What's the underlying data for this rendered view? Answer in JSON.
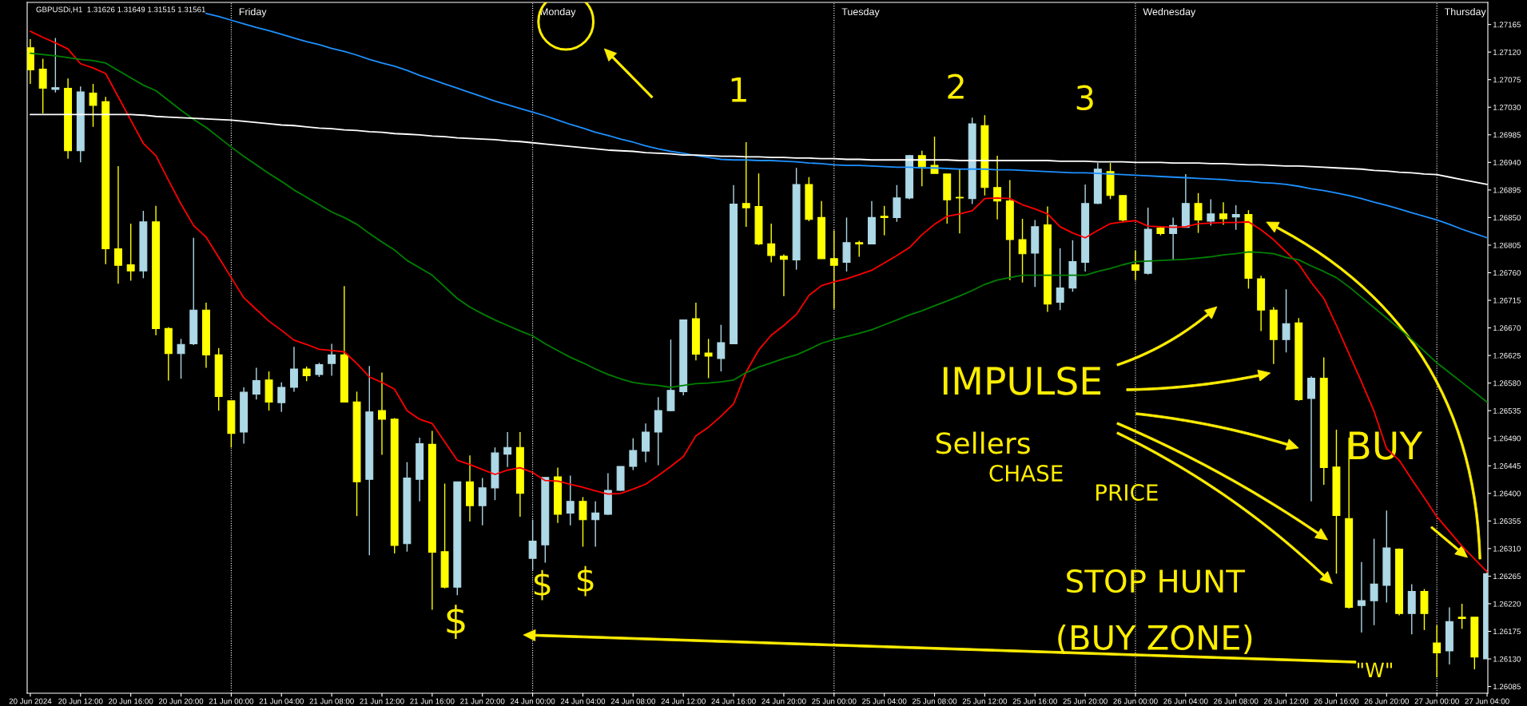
{
  "chart_data": {
    "type": "candlestick",
    "title": "GBPUSDi,H1  1.31626 1.31649 1.31515 1.31561",
    "categories": [
      "20 Jun 2024",
      null,
      null,
      null,
      "20 Jun 12:00",
      null,
      null,
      null,
      "20 Jun 16:00",
      null,
      null,
      null,
      "20 Jun 20:00",
      null,
      null,
      null,
      "21 Jun 00:00",
      null,
      null,
      null,
      "21 Jun 04:00",
      null,
      null,
      null,
      "21 Jun 08:00",
      null,
      null,
      null,
      "21 Jun 12:00",
      null,
      null,
      null,
      "21 Jun 16:00",
      null,
      null,
      null,
      "21 Jun 20:00",
      null,
      null,
      null,
      "24 Jun 00:00",
      null,
      null,
      null,
      "24 Jun 04:00",
      null,
      null,
      null,
      "24 Jun 08:00",
      null,
      null,
      null,
      "24 Jun 12:00",
      null,
      null,
      null,
      "24 Jun 16:00",
      null,
      null,
      null,
      "24 Jun 20:00",
      null,
      null,
      null,
      "25 Jun 00:00",
      null,
      null,
      null,
      "25 Jun 04:00",
      null,
      null,
      null,
      "25 Jun 08:00",
      null,
      null,
      null,
      "25 Jun 12:00",
      null,
      null,
      null,
      "25 Jun 16:00",
      null,
      null,
      null,
      "25 Jun 20:00",
      null,
      null,
      null,
      "26 Jun 00:00",
      null,
      null,
      null,
      "26 Jun 04:00",
      null,
      null,
      null,
      "26 Jun 08:00",
      null,
      null,
      null,
      "26 Jun 12:00",
      null,
      null,
      null,
      "26 Jun 16:00",
      null,
      null,
      null,
      "26 Jun 20:00",
      null,
      null,
      null,
      "27 Jun 00:00",
      null,
      null,
      null,
      "27 Jun 04:00"
    ],
    "ohlc": [
      [
        1.27127,
        1.27141,
        1.27068,
        1.27091
      ],
      [
        1.27092,
        1.27109,
        1.2702,
        1.27061
      ],
      [
        1.27059,
        1.27143,
        1.27054,
        1.27062
      ],
      [
        1.27061,
        1.27077,
        1.26946,
        1.26959
      ],
      [
        1.26959,
        1.27064,
        1.2694,
        1.27055
      ],
      [
        1.27053,
        1.27068,
        1.26998,
        1.27033
      ],
      [
        1.27039,
        1.27047,
        1.26774,
        1.26799
      ],
      [
        1.26799,
        1.26934,
        1.26742,
        1.26772
      ],
      [
        1.26773,
        1.2684,
        1.26747,
        1.26763
      ],
      [
        1.26763,
        1.26861,
        1.26751,
        1.26843
      ],
      [
        1.26843,
        1.26869,
        1.26658,
        1.26669
      ],
      [
        1.26669,
        1.26671,
        1.26584,
        1.26628
      ],
      [
        1.26628,
        1.26652,
        1.26587,
        1.26643
      ],
      [
        1.26644,
        1.26817,
        1.26642,
        1.26699
      ],
      [
        1.26699,
        1.26711,
        1.26605,
        1.26626
      ],
      [
        1.26626,
        1.26637,
        1.26535,
        1.26558
      ],
      [
        1.26551,
        1.26551,
        1.26475,
        1.26498
      ],
      [
        1.265,
        1.26573,
        1.26481,
        1.26565
      ],
      [
        1.26562,
        1.26605,
        1.26553,
        1.26584
      ],
      [
        1.26585,
        1.26599,
        1.26535,
        1.26549
      ],
      [
        1.26548,
        1.26581,
        1.26533,
        1.26573
      ],
      [
        1.26573,
        1.26639,
        1.26566,
        1.26603
      ],
      [
        1.26603,
        1.26607,
        1.26583,
        1.26592
      ],
      [
        1.26594,
        1.26613,
        1.2659,
        1.2661
      ],
      [
        1.26612,
        1.26644,
        1.26592,
        1.26626
      ],
      [
        1.26626,
        1.26738,
        1.26549,
        1.26549
      ],
      [
        1.26549,
        1.26566,
        1.26363,
        1.26419
      ],
      [
        1.26423,
        1.26608,
        1.26299,
        1.26533
      ],
      [
        1.26535,
        1.26597,
        1.26463,
        1.26521
      ],
      [
        1.26521,
        1.26523,
        1.26302,
        1.26315
      ],
      [
        1.26318,
        1.26451,
        1.26305,
        1.26425
      ],
      [
        1.26423,
        1.26491,
        1.26387,
        1.26481
      ],
      [
        1.2648,
        1.26502,
        1.2621,
        1.26304
      ],
      [
        1.26305,
        1.26416,
        1.26245,
        1.26247
      ],
      [
        1.26247,
        1.26419,
        1.26234,
        1.26419
      ],
      [
        1.26419,
        1.26462,
        1.26354,
        1.2638
      ],
      [
        1.2638,
        1.26425,
        1.26348,
        1.26409
      ],
      [
        1.26409,
        1.26475,
        1.26389,
        1.26466
      ],
      [
        1.26464,
        1.265,
        1.26443,
        1.26475
      ],
      [
        1.26475,
        1.265,
        1.26362,
        1.264
      ],
      [
        1.26294,
        1.26357,
        1.26275,
        1.26322
      ],
      [
        1.26316,
        1.26426,
        1.26287,
        1.26426
      ],
      [
        1.26427,
        1.26442,
        1.26352,
        1.26366
      ],
      [
        1.26368,
        1.26429,
        1.26348,
        1.26387
      ],
      [
        1.26387,
        1.26394,
        1.26313,
        1.26357
      ],
      [
        1.26357,
        1.26387,
        1.26313,
        1.26368
      ],
      [
        1.26366,
        1.26433,
        1.26365,
        1.26405
      ],
      [
        1.26405,
        1.26444,
        1.26404,
        1.26444
      ],
      [
        1.26444,
        1.2649,
        1.26438,
        1.2647
      ],
      [
        1.26469,
        1.26514,
        1.26451,
        1.265
      ],
      [
        1.265,
        1.26557,
        1.26446,
        1.26535
      ],
      [
        1.26535,
        1.26651,
        1.26534,
        1.26568
      ],
      [
        1.26566,
        1.26683,
        1.2656,
        1.26683
      ],
      [
        1.26685,
        1.26711,
        1.26617,
        1.26627
      ],
      [
        1.26629,
        1.26652,
        1.26588,
        1.26624
      ],
      [
        1.2662,
        1.26675,
        1.26599,
        1.26646
      ],
      [
        1.26644,
        1.26903,
        1.26644,
        1.26872
      ],
      [
        1.26873,
        1.26973,
        1.26835,
        1.26866
      ],
      [
        1.26868,
        1.26922,
        1.26805,
        1.26807
      ],
      [
        1.26807,
        1.2684,
        1.26777,
        1.26788
      ],
      [
        1.26787,
        1.2679,
        1.26722,
        1.26782
      ],
      [
        1.26781,
        1.26931,
        1.26765,
        1.26904
      ],
      [
        1.26904,
        1.26916,
        1.26844,
        1.26847
      ],
      [
        1.2685,
        1.26877,
        1.26783,
        1.26783
      ],
      [
        1.26783,
        1.26829,
        1.26701,
        1.26772
      ],
      [
        1.26777,
        1.2685,
        1.26762,
        1.26809
      ],
      [
        1.26809,
        1.26812,
        1.26786,
        1.26807
      ],
      [
        1.26807,
        1.26877,
        1.26807,
        1.2685
      ],
      [
        1.26852,
        1.26869,
        1.26821,
        1.2685
      ],
      [
        1.2685,
        1.26903,
        1.26843,
        1.26882
      ],
      [
        1.26882,
        1.26952,
        1.2688,
        1.26951
      ],
      [
        1.26951,
        1.26959,
        1.26901,
        1.26933
      ],
      [
        1.26935,
        1.26982,
        1.26922,
        1.26922
      ],
      [
        1.26921,
        1.26921,
        1.2684,
        1.26879
      ],
      [
        1.26883,
        1.26929,
        1.26824,
        1.26882
      ],
      [
        1.26881,
        1.27013,
        1.26872,
        1.27003
      ],
      [
        1.27,
        1.27017,
        1.26886,
        1.26899
      ],
      [
        1.26899,
        1.26951,
        1.26847,
        1.26877
      ],
      [
        1.26877,
        1.26911,
        1.26748,
        1.26814
      ],
      [
        1.26814,
        1.26848,
        1.26744,
        1.26791
      ],
      [
        1.26792,
        1.26846,
        1.26737,
        1.26835
      ],
      [
        1.26838,
        1.26868,
        1.26696,
        1.26709
      ],
      [
        1.26712,
        1.268,
        1.26699,
        1.26735
      ],
      [
        1.26735,
        1.26813,
        1.26729,
        1.26778
      ],
      [
        1.26777,
        1.26904,
        1.26762,
        1.26873
      ],
      [
        1.26873,
        1.26939,
        1.26872,
        1.26929
      ],
      [
        1.26925,
        1.26939,
        1.2688,
        1.26886
      ],
      [
        1.26886,
        1.26886,
        1.26844,
        1.26846
      ],
      [
        1.26773,
        1.26796,
        1.26748,
        1.26764
      ],
      [
        1.26759,
        1.26866,
        1.26757,
        1.26831
      ],
      [
        1.26833,
        1.26835,
        1.26821,
        1.26824
      ],
      [
        1.26824,
        1.2685,
        1.26781,
        1.26837
      ],
      [
        1.26834,
        1.26921,
        1.26834,
        1.26873
      ],
      [
        1.26873,
        1.2689,
        1.26825,
        1.26846
      ],
      [
        1.26844,
        1.2688,
        1.26837,
        1.26856
      ],
      [
        1.26856,
        1.26875,
        1.26838,
        1.26848
      ],
      [
        1.26851,
        1.2687,
        1.2683,
        1.26855
      ],
      [
        1.26855,
        1.26862,
        1.26734,
        1.26751
      ],
      [
        1.2675,
        1.26755,
        1.26665,
        1.26699
      ],
      [
        1.26699,
        1.26704,
        1.26611,
        1.26651
      ],
      [
        1.26651,
        1.26733,
        1.2663,
        1.26677
      ],
      [
        1.26678,
        1.26686,
        1.26551,
        1.26553
      ],
      [
        1.26555,
        1.26591,
        1.26387,
        1.26588
      ],
      [
        1.26588,
        1.26622,
        1.26414,
        1.26442
      ],
      [
        1.26443,
        1.26504,
        1.26269,
        1.26364
      ],
      [
        1.26359,
        1.26491,
        1.26212,
        1.26214
      ],
      [
        1.26217,
        1.26288,
        1.26173,
        1.26225
      ],
      [
        1.26225,
        1.26326,
        1.26185,
        1.26252
      ],
      [
        1.2625,
        1.26372,
        1.26222,
        1.26311
      ],
      [
        1.26309,
        1.2631,
        1.26201,
        1.26204
      ],
      [
        1.26204,
        1.26252,
        1.2617,
        1.2624
      ],
      [
        1.2624,
        1.26244,
        1.26177,
        1.26204
      ],
      [
        1.26156,
        1.26185,
        1.261,
        1.2614
      ],
      [
        1.26143,
        1.26214,
        1.26121,
        1.26191
      ],
      [
        1.26198,
        1.2622,
        1.26179,
        1.26196
      ],
      [
        1.26198,
        1.26198,
        1.26113,
        1.26133
      ],
      [
        1.2613,
        1.26275,
        1.2613,
        1.26269
      ]
    ],
    "colors": [
      "#ffff00",
      "#ffff00",
      "#add8e6",
      "#ffff00",
      "#add8e6",
      "#ffff00",
      "#ffff00",
      "#ffff00",
      "#ffff00",
      "#add8e6",
      "#ffff00",
      "#ffff00",
      "#add8e6",
      "#add8e6",
      "#ffff00",
      "#ffff00",
      "#ffff00",
      "#add8e6",
      "#add8e6",
      "#ffff00",
      "#add8e6",
      "#add8e6",
      "#ffff00",
      "#add8e6",
      "#add8e6",
      "#ffff00",
      "#ffff00",
      "#add8e6",
      "#ffff00",
      "#ffff00",
      "#add8e6",
      "#add8e6",
      "#ffff00",
      "#ffff00",
      "#add8e6",
      "#ffff00",
      "#add8e6",
      "#add8e6",
      "#add8e6",
      "#ffff00",
      "#add8e6",
      "#add8e6",
      "#ffff00",
      "#add8e6",
      "#ffff00",
      "#add8e6",
      "#add8e6",
      "#add8e6",
      "#add8e6",
      "#add8e6",
      "#add8e6",
      "#add8e6",
      "#add8e6",
      "#ffff00",
      "#ffff00",
      "#add8e6",
      "#add8e6",
      "#ffff00",
      "#ffff00",
      "#ffff00",
      "#ffff00",
      "#add8e6",
      "#ffff00",
      "#ffff00",
      "#ffff00",
      "#add8e6",
      "#ffff00",
      "#add8e6",
      "#ffff00",
      "#add8e6",
      "#add8e6",
      "#ffff00",
      "#ffff00",
      "#ffff00",
      "#ffff00",
      "#add8e6",
      "#ffff00",
      "#ffff00",
      "#ffff00",
      "#ffff00",
      "#add8e6",
      "#ffff00",
      "#add8e6",
      "#add8e6",
      "#add8e6",
      "#add8e6",
      "#ffff00",
      "#ffff00",
      "#ffff00",
      "#add8e6",
      "#ffff00",
      "#add8e6",
      "#add8e6",
      "#ffff00",
      "#add8e6",
      "#ffff00",
      "#add8e6",
      "#ffff00",
      "#ffff00",
      "#ffff00",
      "#add8e6",
      "#ffff00",
      "#add8e6",
      "#ffff00",
      "#ffff00",
      "#ffff00",
      "#add8e6",
      "#add8e6",
      "#add8e6",
      "#ffff00",
      "#add8e6",
      "#ffff00",
      "#ffff00",
      "#add8e6",
      "#ffff00",
      "#ffff00",
      "#add8e6"
    ],
    "series": [
      {
        "type": "line",
        "color": "#ff0000",
        "values": [
          1.27154,
          1.27144,
          1.27135,
          1.27125,
          1.27101,
          1.27094,
          1.27085,
          1.27047,
          1.27009,
          1.26971,
          1.26951,
          1.26911,
          1.26872,
          1.26837,
          1.26818,
          1.26785,
          1.26752,
          1.26719,
          1.267,
          1.26681,
          1.26666,
          1.2665,
          1.26643,
          1.26635,
          1.26633,
          1.26631,
          1.26612,
          1.2659,
          1.26581,
          1.2657,
          1.26535,
          1.26521,
          1.26514,
          1.26484,
          1.26454,
          1.26447,
          1.26439,
          1.26431,
          1.26438,
          1.26442,
          1.26434,
          1.26421,
          1.2642,
          1.26415,
          1.2641,
          1.26404,
          1.26399,
          1.264,
          1.26407,
          1.26415,
          1.26429,
          1.26444,
          1.2646,
          1.26494,
          1.26508,
          1.26526,
          1.26546,
          1.26598,
          1.26634,
          1.26658,
          1.26674,
          1.26692,
          1.26723,
          1.26739,
          1.26745,
          1.2675,
          1.26757,
          1.26764,
          1.26776,
          1.26788,
          1.26801,
          1.26822,
          1.26839,
          1.26852,
          1.26856,
          1.26861,
          1.26881,
          1.26882,
          1.26881,
          1.26871,
          1.26864,
          1.26856,
          1.26835,
          1.26825,
          1.26817,
          1.26829,
          1.2684,
          1.26843,
          1.26845,
          1.26836,
          1.26835,
          1.26834,
          1.26835,
          1.2684,
          1.26841,
          1.26842,
          1.26842,
          1.26843,
          1.2683,
          1.26814,
          1.26794,
          1.26774,
          1.26744,
          1.26718,
          1.26674,
          1.26628,
          1.26582,
          1.26534,
          1.26473,
          1.26454,
          1.26423,
          1.26393,
          1.26362,
          1.26338,
          1.26314,
          1.26293,
          1.26272
        ]
      },
      {
        "type": "line",
        "color": "#008000",
        "values": [
          1.27118,
          1.27116,
          1.27114,
          1.27111,
          1.27108,
          1.27106,
          1.27102,
          1.2709,
          1.27078,
          1.27066,
          1.27057,
          1.27041,
          1.27025,
          1.2701,
          1.26997,
          1.26981,
          1.26965,
          1.2695,
          1.26936,
          1.26922,
          1.26909,
          1.26895,
          1.26883,
          1.26871,
          1.26859,
          1.2685,
          1.26839,
          1.26824,
          1.2681,
          1.26797,
          1.2678,
          1.26768,
          1.26756,
          1.26737,
          1.26718,
          1.26704,
          1.26693,
          1.26683,
          1.26674,
          1.26665,
          1.26657,
          1.26644,
          1.26633,
          1.26622,
          1.26613,
          1.26603,
          1.26594,
          1.26587,
          1.26581,
          1.26578,
          1.26576,
          1.26573,
          1.26576,
          1.26579,
          1.2658,
          1.26582,
          1.26585,
          1.26597,
          1.26606,
          1.26613,
          1.2662,
          1.26626,
          1.26635,
          1.26645,
          1.26651,
          1.26656,
          1.26661,
          1.26667,
          1.26675,
          1.26683,
          1.26691,
          1.26698,
          1.26706,
          1.26714,
          1.26722,
          1.26731,
          1.26741,
          1.26748,
          1.26752,
          1.26756,
          1.26756,
          1.26756,
          1.26756,
          1.26756,
          1.26756,
          1.26762,
          1.26767,
          1.26773,
          1.26778,
          1.26779,
          1.2678,
          1.26781,
          1.26782,
          1.26784,
          1.26786,
          1.26789,
          1.26791,
          1.26794,
          1.26793,
          1.26791,
          1.26785,
          1.26781,
          1.26771,
          1.26762,
          1.26752,
          1.26737,
          1.2672,
          1.26703,
          1.26686,
          1.26669,
          1.26651,
          1.26632,
          1.26613,
          1.26597,
          1.26581,
          1.26565,
          1.26549
        ]
      },
      {
        "type": "line",
        "color": "#1e90ff",
        "values": [
          null,
          null,
          null,
          null,
          null,
          null,
          null,
          null,
          null,
          null,
          null,
          null,
          null,
          null,
          1.27183,
          1.27178,
          1.27172,
          1.27166,
          1.2716,
          1.27155,
          1.27149,
          1.27143,
          1.27137,
          1.27132,
          1.27126,
          1.27121,
          1.27115,
          1.27108,
          1.27102,
          1.27097,
          1.2709,
          1.27082,
          1.27075,
          1.27068,
          1.27061,
          1.27054,
          1.27047,
          1.2704,
          1.27034,
          1.27028,
          1.27022,
          1.27016,
          1.27009,
          1.27002,
          1.26996,
          1.26989,
          1.26984,
          1.26978,
          1.26973,
          1.26967,
          1.26962,
          1.26958,
          1.26955,
          1.26951,
          1.26948,
          1.26945,
          1.26944,
          1.26944,
          1.26943,
          1.26943,
          1.26942,
          1.26941,
          1.26939,
          1.26938,
          1.26936,
          1.26935,
          1.26935,
          1.26934,
          1.26933,
          1.26932,
          1.26932,
          1.26931,
          1.26931,
          1.2693,
          1.26929,
          1.26929,
          1.26929,
          1.26928,
          1.26928,
          1.26927,
          1.26926,
          1.26925,
          1.26924,
          1.26923,
          1.26923,
          1.26922,
          1.26921,
          1.2692,
          1.26919,
          1.26918,
          1.26917,
          1.26916,
          1.26915,
          1.26914,
          1.26913,
          1.26912,
          1.2691,
          1.26909,
          1.26907,
          1.26906,
          1.26904,
          1.26901,
          1.26897,
          1.26894,
          1.2689,
          1.26886,
          1.26881,
          1.26875,
          1.2687,
          1.26864,
          1.26858,
          1.26852,
          1.26846,
          1.26839,
          1.26831,
          1.26824,
          1.26817
        ]
      },
      {
        "type": "line",
        "color": "#ffffff",
        "values": [
          1.27018,
          1.27018,
          1.27018,
          1.27018,
          1.27018,
          1.27018,
          1.27018,
          1.27018,
          1.27018,
          1.27017,
          1.27015,
          1.27014,
          1.27013,
          1.27012,
          1.27011,
          1.2701,
          1.27009,
          1.27007,
          1.27005,
          1.27003,
          1.27001,
          1.27,
          1.26998,
          1.26996,
          1.26995,
          1.26993,
          1.26992,
          1.2699,
          1.26989,
          1.26987,
          1.26986,
          1.26985,
          1.26983,
          1.26982,
          1.2698,
          1.26979,
          1.26978,
          1.26977,
          1.26975,
          1.26974,
          1.26972,
          1.2697,
          1.26968,
          1.26966,
          1.26964,
          1.26962,
          1.2696,
          1.26959,
          1.26958,
          1.26956,
          1.26955,
          1.26954,
          1.26952,
          1.26952,
          1.26951,
          1.2695,
          1.2695,
          1.26949,
          1.26949,
          1.26948,
          1.26948,
          1.26947,
          1.26947,
          1.26946,
          1.26946,
          1.26945,
          1.26945,
          1.26944,
          1.26944,
          1.26944,
          1.26944,
          1.26944,
          1.26944,
          1.26944,
          1.26943,
          1.26943,
          1.26943,
          1.26943,
          1.26943,
          1.26943,
          1.26943,
          1.26943,
          1.26942,
          1.26942,
          1.26942,
          1.26941,
          1.26941,
          1.26941,
          1.2694,
          1.2694,
          1.2694,
          1.26939,
          1.26939,
          1.26939,
          1.26938,
          1.26938,
          1.26937,
          1.26936,
          1.26936,
          1.26935,
          1.26934,
          1.26934,
          1.26933,
          1.26932,
          1.26931,
          1.2693,
          1.26929,
          1.26927,
          1.26926,
          1.26924,
          1.26923,
          1.26921,
          1.2692,
          1.26916,
          1.26912,
          1.26908,
          1.26904
        ]
      }
    ],
    "ylim": [
      1.26074,
      1.27201
    ],
    "yticks": [
      1.26085,
      {
        "value": 1.2613,
        "label": "1.26130"
      },
      1.26175,
      {
        "value": 1.2622,
        "label": "1.26220"
      },
      1.26265,
      {
        "value": 1.2631,
        "label": "1.26310"
      },
      1.26355,
      {
        "value": 1.264,
        "label": "1.26400"
      },
      1.26445,
      {
        "value": 1.2649,
        "label": "1.26490"
      },
      1.26535,
      {
        "value": 1.2658,
        "label": "1.26580"
      },
      1.26625,
      {
        "value": 1.2667,
        "label": "1.26670"
      },
      1.26715,
      {
        "value": 1.2676,
        "label": "1.26760"
      },
      1.26805,
      {
        "value": 1.2685,
        "label": "1.26850"
      },
      1.26895,
      {
        "value": 1.2694,
        "label": "1.26940"
      },
      1.26985,
      {
        "value": 1.2703,
        "label": "1.27030"
      },
      1.27075,
      {
        "value": 1.2712,
        "label": "1.27120"
      },
      1.27165
    ],
    "ref_lines": [
      {
        "axis": "x",
        "value": "21 Jun 00:00",
        "label": "Friday",
        "color": "#ffffff",
        "line_style": "dotted"
      },
      {
        "axis": "x",
        "value": "24 Jun 00:00",
        "label": "Monday",
        "color": "#ffffff",
        "line_style": "dotted"
      },
      {
        "axis": "x",
        "value": "25 Jun 00:00",
        "label": "Tuesday",
        "color": "#ffffff",
        "line_style": "dotted"
      },
      {
        "axis": "x",
        "value": "26 Jun 00:00",
        "label": "Wednesday",
        "color": "#ffffff",
        "line_style": "dotted"
      },
      {
        "axis": "x",
        "value": "27 Jun 00:00",
        "label": "Thursday",
        "color": "#ffffff",
        "line_style": "dotted"
      }
    ],
    "annotations": [
      "1",
      "2",
      "3",
      "IMPULSE",
      "Sellers",
      "CHASE",
      "PRICE",
      "BUY",
      "STOP HUNT",
      "(BUY ZONE)",
      "$",
      "$",
      "$",
      "\"W\""
    ]
  }
}
